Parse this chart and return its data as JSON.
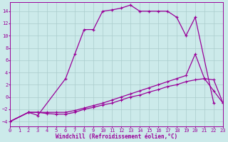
{
  "xlabel": "Windchill (Refroidissement éolien,°C)",
  "background_color": "#cceaea",
  "line_color": "#990099",
  "grid_color": "#aacccc",
  "xticks": [
    0,
    1,
    2,
    3,
    4,
    5,
    6,
    7,
    8,
    9,
    10,
    11,
    12,
    13,
    14,
    15,
    16,
    17,
    18,
    19,
    20,
    21,
    22,
    23
  ],
  "yticks": [
    -4,
    -2,
    0,
    2,
    4,
    6,
    8,
    10,
    12,
    14
  ],
  "line1_x": [
    0,
    2,
    3,
    6,
    7,
    8,
    9,
    10,
    11,
    12,
    13,
    14,
    15,
    16,
    17,
    18,
    19,
    20,
    22
  ],
  "line1_y": [
    -4,
    -2.5,
    -3.0,
    3,
    7,
    11,
    11,
    14,
    14.2,
    14.5,
    15,
    14,
    14,
    14,
    14,
    13,
    10,
    13,
    -1
  ],
  "line2_x": [
    0,
    2,
    3,
    4,
    5,
    6,
    7,
    8,
    9,
    10,
    11,
    12,
    13,
    14,
    15,
    16,
    17,
    18,
    19,
    20,
    21,
    22,
    23
  ],
  "line2_y": [
    -4,
    -2.5,
    -2.5,
    -2.7,
    -2.8,
    -2.8,
    -2.5,
    -2,
    -1.7,
    -1.3,
    -1,
    -0.5,
    0,
    0.3,
    0.8,
    1.2,
    1.7,
    2.0,
    2.5,
    2.8,
    3.0,
    2.8,
    -1
  ],
  "line3_x": [
    0,
    2,
    3,
    4,
    5,
    6,
    7,
    8,
    9,
    10,
    11,
    12,
    13,
    14,
    15,
    16,
    17,
    18,
    19,
    20,
    21,
    22,
    23
  ],
  "line3_y": [
    -4,
    -2.5,
    -2.5,
    -2.5,
    -2.5,
    -2.5,
    -2.2,
    -1.8,
    -1.4,
    -1,
    -0.5,
    0,
    0.5,
    1,
    1.5,
    2,
    2.5,
    3,
    3.5,
    7,
    3,
    1,
    -1
  ]
}
